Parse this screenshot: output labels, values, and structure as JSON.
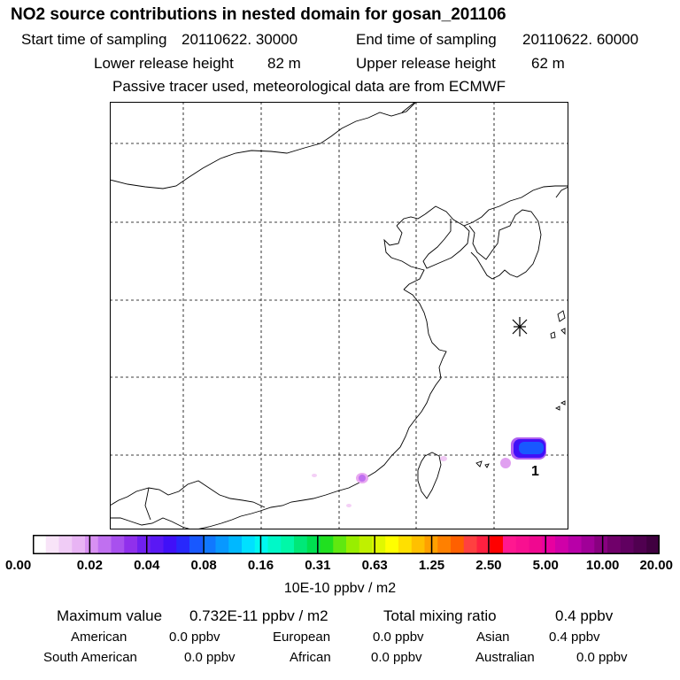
{
  "title": "NO2 source contributions in nested domain for gosan_201106",
  "sampling": {
    "start_label": "Start time of sampling",
    "start_value": "20110622. 30000",
    "end_label": "End time of sampling",
    "end_value": "20110622. 60000"
  },
  "release": {
    "lower_label": "Lower release height",
    "lower_value": "82 m",
    "upper_label": "Upper release height",
    "upper_value": "62 m"
  },
  "tracer_note": "Passive tracer used, meteorological data are from ECMWF",
  "map": {
    "receptor_marker": "asterisk-icon",
    "source_label": "1",
    "colors": {
      "land_line": "#000000",
      "grid": "#000000",
      "plume_low": "#e8a8f0",
      "plume_mid": "#c080f0",
      "plume_high": "#2020f8"
    }
  },
  "colorbar": {
    "ticks": [
      "0.00",
      "0.02",
      "0.04",
      "0.08",
      "0.16",
      "0.31",
      "0.63",
      "1.25",
      "2.50",
      "5.00",
      "10.00",
      "20.00"
    ],
    "unit": "10E-10 ppbv / m2",
    "colors": [
      "#ffffff",
      "#f8e4f8",
      "#f0ccf6",
      "#e8b4f4",
      "#d890f2",
      "#c070f0",
      "#a850ee",
      "#9030ec",
      "#7020f0",
      "#5a18f4",
      "#4010f8",
      "#2828fc",
      "#1858ff",
      "#1078ff",
      "#0898ff",
      "#00b8ff",
      "#00e0ff",
      "#00f8f0",
      "#00f8c8",
      "#00f8a8",
      "#00e878",
      "#00e050",
      "#20e020",
      "#60e810",
      "#98ee00",
      "#c0f000",
      "#e0f800",
      "#ffff00",
      "#ffe000",
      "#ffc000",
      "#ffa000",
      "#ff8000",
      "#ff6000",
      "#ff4040",
      "#ff2040",
      "#ff0000",
      "#ff1890",
      "#f81090",
      "#f00890",
      "#e800a0",
      "#d000a8",
      "#b800a8",
      "#a00098",
      "#880080",
      "#70006a",
      "#600060",
      "#500050",
      "#400040"
    ]
  },
  "footer": {
    "max_label": "Maximum value",
    "max_value": "0.732E-11 ppbv / m2",
    "total_label": "Total mixing ratio",
    "total_value": "0.4 ppbv",
    "regions": [
      {
        "name": "American",
        "value": "0.0 ppbv"
      },
      {
        "name": "European",
        "value": "0.0 ppbv"
      },
      {
        "name": "Asian",
        "value": "0.4 ppbv"
      },
      {
        "name": "South American",
        "value": "0.0 ppbv"
      },
      {
        "name": "African",
        "value": "0.0 ppbv"
      },
      {
        "name": "Australian",
        "value": "0.0 ppbv"
      }
    ]
  }
}
